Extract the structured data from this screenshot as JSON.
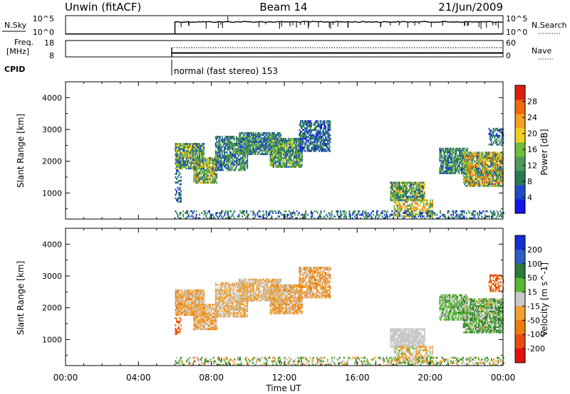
{
  "header": {
    "station": "Unwin (fitACF)",
    "beam": "Beam 14",
    "date": "21/Jun/2009"
  },
  "nsky_panel": {
    "left_label": "N.Sky",
    "left_ticks": [
      "10^5",
      "10^0"
    ],
    "right_ticks": [
      "10^5",
      "10^0"
    ],
    "right_label": "N.Search"
  },
  "freq_panel": {
    "left_label_1": "Freq.",
    "left_label_2": "[MHz]",
    "left_ticks": [
      "18",
      "8"
    ],
    "right_ticks": [
      "60",
      "0"
    ],
    "right_label": "Nave"
  },
  "cpid": {
    "label": "CPID",
    "value": "normal (fast stereo) 153"
  },
  "colors": {
    "power": [
      "#1414e6",
      "#1e4cc8",
      "#2b7a52",
      "#4f9a58",
      "#6fbf3a",
      "#f0d020",
      "#f5a020",
      "#f06a10",
      "#e01e10"
    ],
    "velocity": [
      "#1430d0",
      "#2e5ec8",
      "#2c7a3a",
      "#58b830",
      "#c8c8c8",
      "#f0a030",
      "#f07a10",
      "#e84a10",
      "#e01010"
    ]
  },
  "chart_data": [
    {
      "type": "heatmap",
      "quantity": "Power",
      "ylabel": "Slant Range [km]",
      "yticks": [
        "1000",
        "2000",
        "3000",
        "4000"
      ],
      "ylim": [
        180,
        4500
      ],
      "xlim": [
        0,
        24
      ],
      "colorbar_label": "Power [dB]",
      "colorbar_ticks": [
        "4",
        "8",
        "12",
        "16",
        "20",
        "24",
        "28"
      ],
      "clim": [
        0,
        32
      ],
      "regions": [
        {
          "t0": 6.0,
          "t1": 7.6,
          "r0": 1750,
          "r1": 2550,
          "density": 0.85,
          "vmin": 3,
          "vmax": 22
        },
        {
          "t0": 7.0,
          "t1": 8.3,
          "r0": 1300,
          "r1": 2100,
          "density": 0.8,
          "vmin": 6,
          "vmax": 24
        },
        {
          "t0": 8.2,
          "t1": 10.0,
          "r0": 1700,
          "r1": 2800,
          "density": 0.75,
          "vmin": 3,
          "vmax": 16
        },
        {
          "t0": 9.5,
          "t1": 11.8,
          "r0": 2200,
          "r1": 2900,
          "density": 0.8,
          "vmin": 3,
          "vmax": 16
        },
        {
          "t0": 11.2,
          "t1": 13.0,
          "r0": 1800,
          "r1": 2700,
          "density": 0.85,
          "vmin": 4,
          "vmax": 20
        },
        {
          "t0": 12.8,
          "t1": 14.5,
          "r0": 2300,
          "r1": 3250,
          "density": 0.7,
          "vmin": 2,
          "vmax": 12
        },
        {
          "t0": 17.8,
          "t1": 19.7,
          "r0": 750,
          "r1": 1350,
          "density": 0.85,
          "vmin": 4,
          "vmax": 22
        },
        {
          "t0": 18.0,
          "t1": 20.1,
          "r0": 250,
          "r1": 750,
          "density": 0.55,
          "vmin": 12,
          "vmax": 26
        },
        {
          "t0": 20.5,
          "t1": 22.0,
          "r0": 1600,
          "r1": 2400,
          "density": 0.8,
          "vmin": 3,
          "vmax": 18
        },
        {
          "t0": 21.8,
          "t1": 24.0,
          "r0": 1200,
          "r1": 2300,
          "density": 0.85,
          "vmin": 5,
          "vmax": 28
        },
        {
          "t0": 23.2,
          "t1": 24.0,
          "r0": 2500,
          "r1": 3000,
          "density": 0.5,
          "vmin": 3,
          "vmax": 14
        },
        {
          "t0": 6.0,
          "t1": 24.0,
          "r0": 180,
          "r1": 450,
          "density": 0.35,
          "vmin": 2,
          "vmax": 14
        },
        {
          "t0": 6.0,
          "t1": 6.3,
          "r0": 700,
          "r1": 1700,
          "density": 0.4,
          "vmin": 3,
          "vmax": 10
        }
      ]
    },
    {
      "type": "heatmap",
      "quantity": "Velocity",
      "xlabel": "Time UT",
      "ylabel": "Slant Range [km]",
      "yticks": [
        "1000",
        "2000",
        "3000",
        "4000"
      ],
      "ylim": [
        180,
        4500
      ],
      "xticks": [
        "00:00",
        "04:00",
        "08:00",
        "12:00",
        "16:00",
        "20:00",
        "00:00"
      ],
      "xlim": [
        0,
        24
      ],
      "colorbar_label": "Velocity [m s^-1]",
      "colorbar_ticks": [
        "200",
        "100",
        "50",
        "15",
        "-15",
        "-50",
        "-100",
        "-200"
      ],
      "regions": [
        {
          "t0": 6.0,
          "t1": 7.6,
          "r0": 1750,
          "r1": 2550,
          "density": 0.85,
          "vmin": -60,
          "vmax": 10
        },
        {
          "t0": 7.0,
          "t1": 8.3,
          "r0": 1300,
          "r1": 2100,
          "density": 0.8,
          "vmin": -60,
          "vmax": 10
        },
        {
          "t0": 8.2,
          "t1": 10.0,
          "r0": 1700,
          "r1": 2800,
          "density": 0.75,
          "vmin": -50,
          "vmax": 10
        },
        {
          "t0": 9.5,
          "t1": 11.8,
          "r0": 2200,
          "r1": 2900,
          "density": 0.8,
          "vmin": -50,
          "vmax": 10
        },
        {
          "t0": 11.2,
          "t1": 13.0,
          "r0": 1800,
          "r1": 2700,
          "density": 0.85,
          "vmin": -60,
          "vmax": 10
        },
        {
          "t0": 12.8,
          "t1": 14.5,
          "r0": 2300,
          "r1": 3250,
          "density": 0.7,
          "vmin": -80,
          "vmax": 10
        },
        {
          "t0": 17.8,
          "t1": 19.7,
          "r0": 750,
          "r1": 1350,
          "density": 0.85,
          "vmin": -10,
          "vmax": 10
        },
        {
          "t0": 18.0,
          "t1": 20.1,
          "r0": 250,
          "r1": 750,
          "density": 0.55,
          "vmin": -50,
          "vmax": 30
        },
        {
          "t0": 20.5,
          "t1": 22.0,
          "r0": 1600,
          "r1": 2400,
          "density": 0.8,
          "vmin": -10,
          "vmax": 60
        },
        {
          "t0": 21.8,
          "t1": 24.0,
          "r0": 1200,
          "r1": 2300,
          "density": 0.85,
          "vmin": -20,
          "vmax": 80
        },
        {
          "t0": 23.2,
          "t1": 24.0,
          "r0": 2500,
          "r1": 3000,
          "density": 0.5,
          "vmin": -200,
          "vmax": -60
        },
        {
          "t0": 6.0,
          "t1": 24.0,
          "r0": 180,
          "r1": 450,
          "density": 0.35,
          "vmin": -60,
          "vmax": 80
        },
        {
          "t0": 6.0,
          "t1": 6.3,
          "r0": 1150,
          "r1": 1700,
          "density": 0.45,
          "vmin": -200,
          "vmax": -40
        }
      ]
    }
  ]
}
